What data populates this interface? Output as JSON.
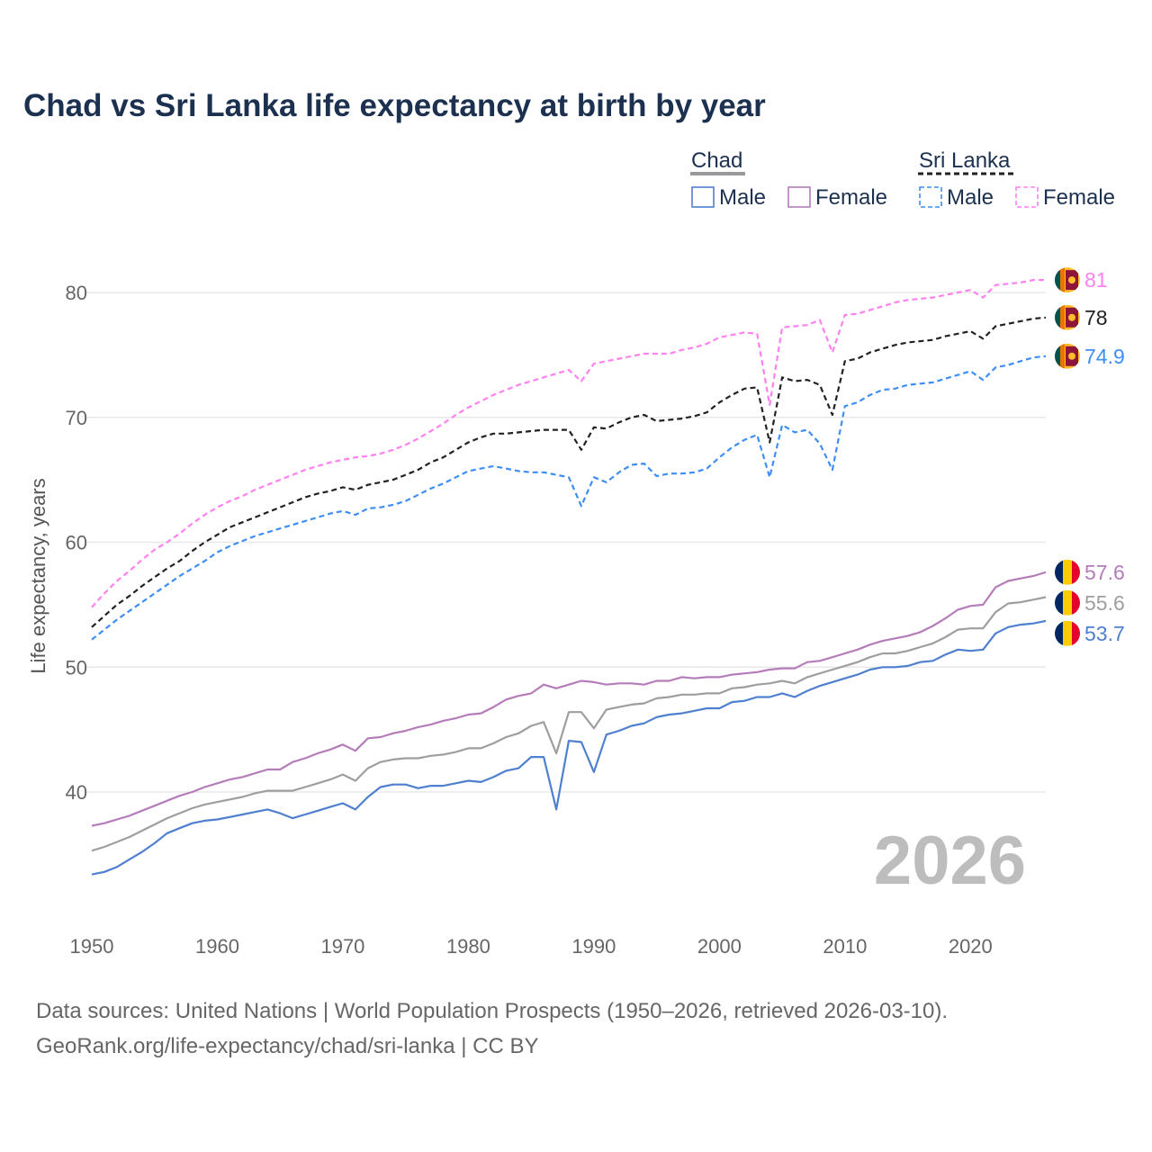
{
  "title": "Chad vs Sri Lanka life expectancy at birth by year",
  "legend": {
    "groups": [
      {
        "name": "Chad",
        "items": [
          "Male",
          "Female"
        ]
      },
      {
        "name": "Sri Lanka",
        "items": [
          "Male",
          "Female"
        ]
      }
    ]
  },
  "year_watermark": "2026",
  "footer": {
    "line1": "Data sources: United Nations | World Population Prospects (1950–2026, retrieved 2026-03-10).",
    "line2": "GeoRank.org/life-expectancy/chad/sri-lanka | CC BY"
  },
  "chart_data": {
    "type": "line",
    "title": "Chad vs Sri Lanka life expectancy at birth by year",
    "xlabel": "",
    "ylabel": "Life expectancy, years",
    "xlim": [
      1950,
      2026
    ],
    "ylim": [
      33,
      82
    ],
    "x_start": 1950,
    "x_ticks": [
      "1950",
      "1960",
      "1970",
      "1980",
      "1990",
      "2000",
      "2010",
      "2020"
    ],
    "y_ticks": [
      "40",
      "50",
      "60",
      "70",
      "80"
    ],
    "grid": true,
    "legend_position": "top-right",
    "series": [
      {
        "name": "Sri Lanka Female",
        "country": "Sri Lanka",
        "color": "#ff80f0",
        "dash": true,
        "end_label": "81",
        "flag": "sri-lanka",
        "values": [
          54.8,
          55.9,
          56.9,
          57.7,
          58.6,
          59.4,
          60.0,
          60.7,
          61.5,
          62.2,
          62.8,
          63.3,
          63.7,
          64.2,
          64.6,
          65.0,
          65.4,
          65.8,
          66.1,
          66.4,
          66.6,
          66.8,
          66.9,
          67.1,
          67.4,
          67.8,
          68.3,
          68.9,
          69.5,
          70.2,
          70.8,
          71.3,
          71.8,
          72.2,
          72.6,
          72.9,
          73.2,
          73.5,
          73.8,
          72.9,
          74.3,
          74.5,
          74.7,
          74.9,
          75.1,
          75.1,
          75.1,
          75.4,
          75.6,
          75.9,
          76.4,
          76.6,
          76.8,
          76.7,
          71.0,
          77.2,
          77.3,
          77.4,
          77.8,
          75.2,
          78.2,
          78.3,
          78.6,
          78.9,
          79.2,
          79.4,
          79.5,
          79.6,
          79.8,
          80.0,
          80.2,
          79.6,
          80.6,
          80.7,
          80.8,
          81.0,
          81.0
        ]
      },
      {
        "name": "Sri Lanka",
        "country": "Sri Lanka",
        "color": "#222222",
        "dash": true,
        "end_label": "78",
        "flag": "sri-lanka",
        "values": [
          53.2,
          54.1,
          55.0,
          55.7,
          56.5,
          57.2,
          57.9,
          58.5,
          59.3,
          60.0,
          60.6,
          61.2,
          61.6,
          62.0,
          62.4,
          62.8,
          63.2,
          63.6,
          63.9,
          64.1,
          64.4,
          64.2,
          64.6,
          64.8,
          65.0,
          65.4,
          65.8,
          66.4,
          66.8,
          67.4,
          68.0,
          68.4,
          68.7,
          68.7,
          68.8,
          68.9,
          69.0,
          69.0,
          69.0,
          67.4,
          69.2,
          69.1,
          69.6,
          70.0,
          70.2,
          69.7,
          69.8,
          69.9,
          70.1,
          70.4,
          71.2,
          71.8,
          72.3,
          72.4,
          68.0,
          73.2,
          72.9,
          73.0,
          72.6,
          70.2,
          74.5,
          74.7,
          75.2,
          75.5,
          75.8,
          76.0,
          76.1,
          76.2,
          76.5,
          76.7,
          76.9,
          76.3,
          77.3,
          77.5,
          77.7,
          77.9,
          78.0
        ]
      },
      {
        "name": "Sri Lanka Male",
        "country": "Sri Lanka",
        "color": "#3d8ef5",
        "dash": true,
        "end_label": "74.9",
        "flag": "sri-lanka",
        "values": [
          52.2,
          53.0,
          53.8,
          54.5,
          55.2,
          55.9,
          56.6,
          57.3,
          57.9,
          58.5,
          59.2,
          59.7,
          60.1,
          60.5,
          60.8,
          61.1,
          61.4,
          61.7,
          62.0,
          62.3,
          62.5,
          62.2,
          62.7,
          62.8,
          63.0,
          63.3,
          63.8,
          64.3,
          64.7,
          65.2,
          65.7,
          65.9,
          66.1,
          65.9,
          65.7,
          65.6,
          65.6,
          65.4,
          65.2,
          62.9,
          65.2,
          64.8,
          65.6,
          66.2,
          66.3,
          65.3,
          65.5,
          65.5,
          65.6,
          65.9,
          66.8,
          67.6,
          68.2,
          68.6,
          65.2,
          69.4,
          68.8,
          69.0,
          67.9,
          65.8,
          70.9,
          71.2,
          71.8,
          72.2,
          72.3,
          72.6,
          72.7,
          72.8,
          73.1,
          73.4,
          73.7,
          73.0,
          74.0,
          74.2,
          74.5,
          74.8,
          74.9
        ]
      },
      {
        "name": "Chad Female",
        "country": "Chad",
        "color": "#b57cba",
        "dash": false,
        "end_label": "57.6",
        "flag": "chad",
        "values": [
          37.3,
          37.5,
          37.8,
          38.1,
          38.5,
          38.9,
          39.3,
          39.7,
          40.0,
          40.4,
          40.7,
          41.0,
          41.2,
          41.5,
          41.8,
          41.8,
          42.4,
          42.7,
          43.1,
          43.4,
          43.8,
          43.3,
          44.3,
          44.4,
          44.7,
          44.9,
          45.2,
          45.4,
          45.7,
          45.9,
          46.2,
          46.3,
          46.8,
          47.4,
          47.7,
          47.9,
          48.6,
          48.3,
          48.6,
          48.9,
          48.8,
          48.6,
          48.7,
          48.7,
          48.6,
          48.9,
          48.9,
          49.2,
          49.1,
          49.2,
          49.2,
          49.4,
          49.5,
          49.6,
          49.8,
          49.9,
          49.9,
          50.4,
          50.5,
          50.8,
          51.1,
          51.4,
          51.8,
          52.1,
          52.3,
          52.5,
          52.8,
          53.3,
          53.9,
          54.6,
          54.9,
          55.0,
          56.4,
          56.9,
          57.1,
          57.3,
          57.6
        ]
      },
      {
        "name": "Chad",
        "country": "Chad",
        "color": "#9e9e9e",
        "dash": false,
        "end_label": "55.6",
        "flag": "chad",
        "values": [
          35.3,
          35.6,
          36.0,
          36.4,
          36.9,
          37.4,
          37.9,
          38.3,
          38.7,
          39.0,
          39.2,
          39.4,
          39.6,
          39.9,
          40.1,
          40.1,
          40.1,
          40.4,
          40.7,
          41.0,
          41.4,
          40.9,
          41.9,
          42.4,
          42.6,
          42.7,
          42.7,
          42.9,
          43.0,
          43.2,
          43.5,
          43.5,
          43.9,
          44.4,
          44.7,
          45.3,
          45.6,
          43.1,
          46.4,
          46.4,
          45.1,
          46.6,
          46.8,
          47.0,
          47.1,
          47.5,
          47.6,
          47.8,
          47.8,
          47.9,
          47.9,
          48.3,
          48.4,
          48.6,
          48.7,
          48.9,
          48.7,
          49.2,
          49.5,
          49.8,
          50.1,
          50.4,
          50.8,
          51.1,
          51.1,
          51.3,
          51.6,
          51.9,
          52.4,
          53.0,
          53.1,
          53.1,
          54.4,
          55.1,
          55.2,
          55.4,
          55.6
        ]
      },
      {
        "name": "Chad Male",
        "country": "Chad",
        "color": "#4f7fcf",
        "dash": false,
        "end_label": "53.7",
        "flag": "chad",
        "values": [
          33.4,
          33.6,
          34.0,
          34.6,
          35.2,
          35.9,
          36.7,
          37.1,
          37.5,
          37.7,
          37.8,
          38.0,
          38.2,
          38.4,
          38.6,
          38.3,
          37.9,
          38.2,
          38.5,
          38.8,
          39.1,
          38.6,
          39.6,
          40.4,
          40.6,
          40.6,
          40.3,
          40.5,
          40.5,
          40.7,
          40.9,
          40.8,
          41.2,
          41.7,
          41.9,
          42.8,
          42.8,
          38.6,
          44.1,
          44.0,
          41.6,
          44.6,
          44.9,
          45.3,
          45.5,
          46.0,
          46.2,
          46.3,
          46.5,
          46.7,
          46.7,
          47.2,
          47.3,
          47.6,
          47.6,
          47.9,
          47.6,
          48.1,
          48.5,
          48.8,
          49.1,
          49.4,
          49.8,
          50.0,
          50.0,
          50.1,
          50.4,
          50.5,
          51.0,
          51.4,
          51.3,
          51.4,
          52.7,
          53.2,
          53.4,
          53.5,
          53.7
        ]
      }
    ]
  }
}
